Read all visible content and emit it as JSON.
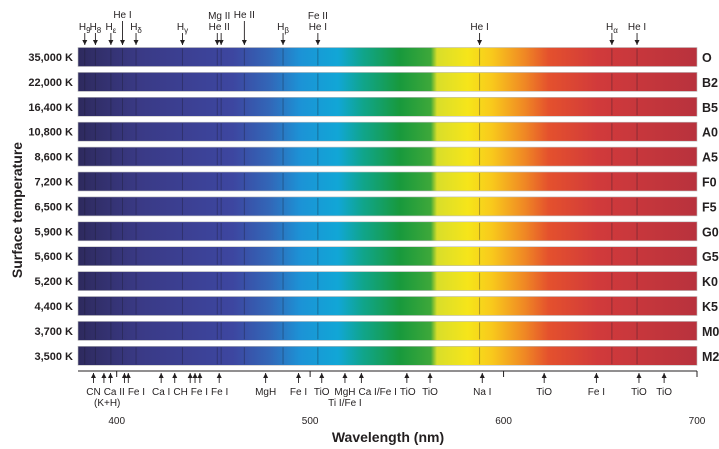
{
  "chart_data": {
    "type": "spectra",
    "xlabel": "Wavelength (nm)",
    "ylabel": "Surface temperature",
    "xlim": [
      380,
      700
    ],
    "xticks": [
      400,
      500,
      600,
      700
    ],
    "series": [
      {
        "temperature": "35,000 K",
        "class": "O"
      },
      {
        "temperature": "22,000 K",
        "class": "B2"
      },
      {
        "temperature": "16,400 K",
        "class": "B5"
      },
      {
        "temperature": "10,800 K",
        "class": "A0"
      },
      {
        "temperature": "8,600 K",
        "class": "A5"
      },
      {
        "temperature": "7,200 K",
        "class": "F0"
      },
      {
        "temperature": "6,500 K",
        "class": "F5"
      },
      {
        "temperature": "5,900 K",
        "class": "G0"
      },
      {
        "temperature": "5,600 K",
        "class": "G5"
      },
      {
        "temperature": "5,200 K",
        "class": "K0"
      },
      {
        "temperature": "4,400 K",
        "class": "K5"
      },
      {
        "temperature": "3,700 K",
        "class": "M0"
      },
      {
        "temperature": "3,500 K",
        "class": "M2"
      }
    ],
    "top_lines": [
      {
        "wavelengths": [
          383.5
        ],
        "lines": [
          "H"
        ],
        "sub": "9"
      },
      {
        "wavelengths": [
          389
        ],
        "lines": [
          "H"
        ],
        "sub": "8"
      },
      {
        "wavelengths": [
          397
        ],
        "lines": [
          "H"
        ],
        "sub": "ε"
      },
      {
        "wavelengths": [
          403
        ],
        "lines": [
          "He I"
        ]
      },
      {
        "wavelengths": [
          410
        ],
        "lines": [
          "H"
        ],
        "sub": "δ"
      },
      {
        "wavelengths": [
          434
        ],
        "lines": [
          "H"
        ],
        "sub": "γ"
      },
      {
        "wavelengths": [
          452,
          454
        ],
        "lines": [
          "Mg II",
          "He II"
        ]
      },
      {
        "wavelengths": [
          466
        ],
        "lines": [
          "He II"
        ]
      },
      {
        "wavelengths": [
          486
        ],
        "lines": [
          "H"
        ],
        "sub": "β"
      },
      {
        "wavelengths": [
          504
        ],
        "lines": [
          "Fe II",
          "He I"
        ]
      },
      {
        "wavelengths": [
          587.6
        ],
        "lines": [
          "He I"
        ]
      },
      {
        "wavelengths": [
          656
        ],
        "lines": [
          "H"
        ],
        "sub": "α"
      },
      {
        "wavelengths": [
          669
        ],
        "lines": [
          "He I"
        ]
      }
    ],
    "bottom_lines": [
      {
        "wavelengths": [
          388
        ],
        "lines": [
          "CN"
        ]
      },
      {
        "wavelengths": [
          393.4,
          396.8
        ],
        "lines": [
          "Ca II",
          "(K+H)"
        ]
      },
      {
        "wavelengths": [
          404,
          406
        ],
        "lines": [
          "Fe I"
        ]
      },
      {
        "wavelengths": [
          423
        ],
        "lines": [
          "Ca I"
        ]
      },
      {
        "wavelengths": [
          430
        ],
        "lines": [
          "CH"
        ]
      },
      {
        "wavelengths": [
          438,
          440.5,
          443
        ],
        "lines": [
          "Fe I"
        ]
      },
      {
        "wavelengths": [
          453
        ],
        "lines": [
          "Fe I"
        ]
      },
      {
        "wavelengths": [
          477
        ],
        "lines": [
          "MgH"
        ]
      },
      {
        "wavelengths": [
          494
        ],
        "lines": [
          "Fe I"
        ]
      },
      {
        "wavelengths": [
          506
        ],
        "lines": [
          "TiO"
        ]
      },
      {
        "wavelengths": [
          518
        ],
        "lines": [
          "MgH",
          "Ti I/Fe I"
        ]
      },
      {
        "wavelengths": [
          526.5
        ],
        "lines": [
          "Ca I/Fe I"
        ]
      },
      {
        "wavelengths": [
          550
        ],
        "lines": [
          "TiO"
        ]
      },
      {
        "wavelengths": [
          562
        ],
        "lines": [
          "TiO"
        ]
      },
      {
        "wavelengths": [
          589
        ],
        "lines": [
          "Na I"
        ]
      },
      {
        "wavelengths": [
          621
        ],
        "lines": [
          "TiO"
        ]
      },
      {
        "wavelengths": [
          648
        ],
        "lines": [
          "Fe I"
        ]
      },
      {
        "wavelengths": [
          670
        ],
        "lines": [
          "TiO"
        ]
      },
      {
        "wavelengths": [
          683
        ],
        "lines": [
          "TiO"
        ]
      }
    ]
  }
}
